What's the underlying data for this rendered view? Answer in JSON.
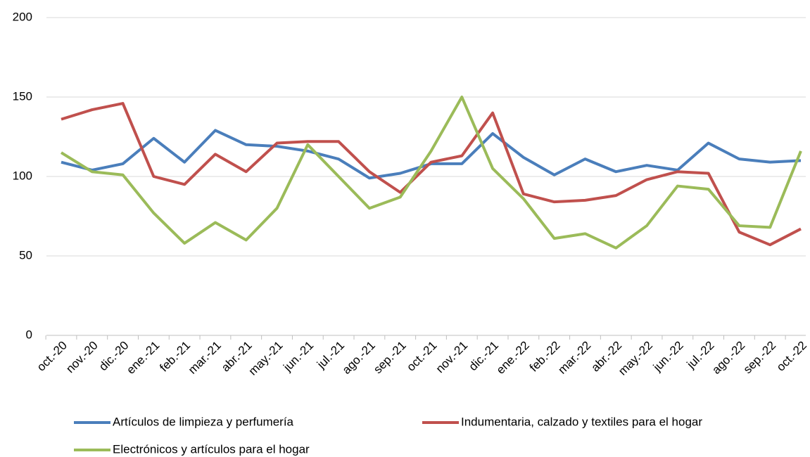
{
  "chart_data": {
    "type": "line",
    "categories": [
      "oct.-20",
      "nov.-20",
      "dic.-20",
      "ene.-21",
      "feb.-21",
      "mar.-21",
      "abr.-21",
      "may.-21",
      "jun.-21",
      "jul.-21",
      "ago.-21",
      "sep.-21",
      "oct.-21",
      "nov.-21",
      "dic.-21",
      "ene.-22",
      "feb.-22",
      "mar.-22",
      "abr.-22",
      "may.-22",
      "jun.-22",
      "jul.-22",
      "ago.-22",
      "sep.-22",
      "oct.-22"
    ],
    "series": [
      {
        "name": "Artículos de limpieza y perfumería",
        "color": "#4a7ebb",
        "values": [
          109,
          104,
          108,
          124,
          109,
          129,
          120,
          119,
          116,
          111,
          99,
          102,
          108,
          108,
          127,
          112,
          101,
          111,
          103,
          107,
          104,
          121,
          111,
          109,
          110
        ]
      },
      {
        "name": "Indumentaria, calzado y textiles para el hogar",
        "color": "#c0504d",
        "values": [
          136,
          142,
          146,
          100,
          95,
          114,
          103,
          121,
          122,
          122,
          103,
          90,
          109,
          113,
          140,
          89,
          84,
          85,
          88,
          98,
          103,
          102,
          65,
          57,
          67
        ]
      },
      {
        "name": "Electrónicos y artículos para el hogar",
        "color": "#9bbb59",
        "values": [
          115,
          103,
          101,
          77,
          58,
          71,
          60,
          80,
          120,
          100,
          80,
          87,
          116,
          150,
          105,
          86,
          61,
          64,
          55,
          69,
          94,
          92,
          69,
          68,
          116
        ]
      }
    ],
    "ylim": [
      0,
      200
    ],
    "yticks": [
      0,
      50,
      100,
      150,
      200
    ],
    "grid": true,
    "legend": "bottom"
  }
}
